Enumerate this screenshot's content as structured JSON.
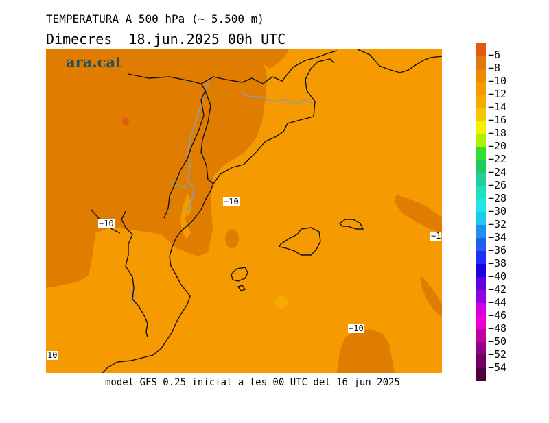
{
  "header": {
    "title": "TEMPERATURA A 500 hPa (~ 5.500 m)",
    "date_line": "Dimecres  18.jun.2025 00h UTC"
  },
  "brand": {
    "logo_text": "ara.cat"
  },
  "footer": {
    "model_info": "model GFS 0.25 iniciat a les 00 UTC del 16 jun 2025"
  },
  "map": {
    "contour_labels": [
      "−10",
      "−10",
      "−10",
      "−1",
      "10"
    ]
  },
  "legend": {
    "ticks": [
      "−6",
      "−8",
      "−10",
      "−12",
      "−14",
      "−16",
      "−18",
      "−20",
      "−22",
      "−24",
      "−26",
      "−28",
      "−30",
      "−32",
      "−34",
      "−36",
      "−38",
      "−40",
      "−42",
      "−44",
      "−46",
      "−48",
      "−50",
      "−52",
      "−54"
    ],
    "colors": [
      "#e05a10",
      "#e07810",
      "#ec8a00",
      "#f59a00",
      "#f7aa00",
      "#f2c800",
      "#f5f000",
      "#b0f000",
      "#30e030",
      "#20c860",
      "#20d0a0",
      "#20e0c0",
      "#20e8e8",
      "#20c8f0",
      "#2090f0",
      "#2060f0",
      "#2030f0",
      "#2000e0",
      "#6000e0",
      "#9000e0",
      "#d000e0",
      "#f000d0",
      "#c000a0",
      "#900080",
      "#700060",
      "#500040"
    ]
  }
}
